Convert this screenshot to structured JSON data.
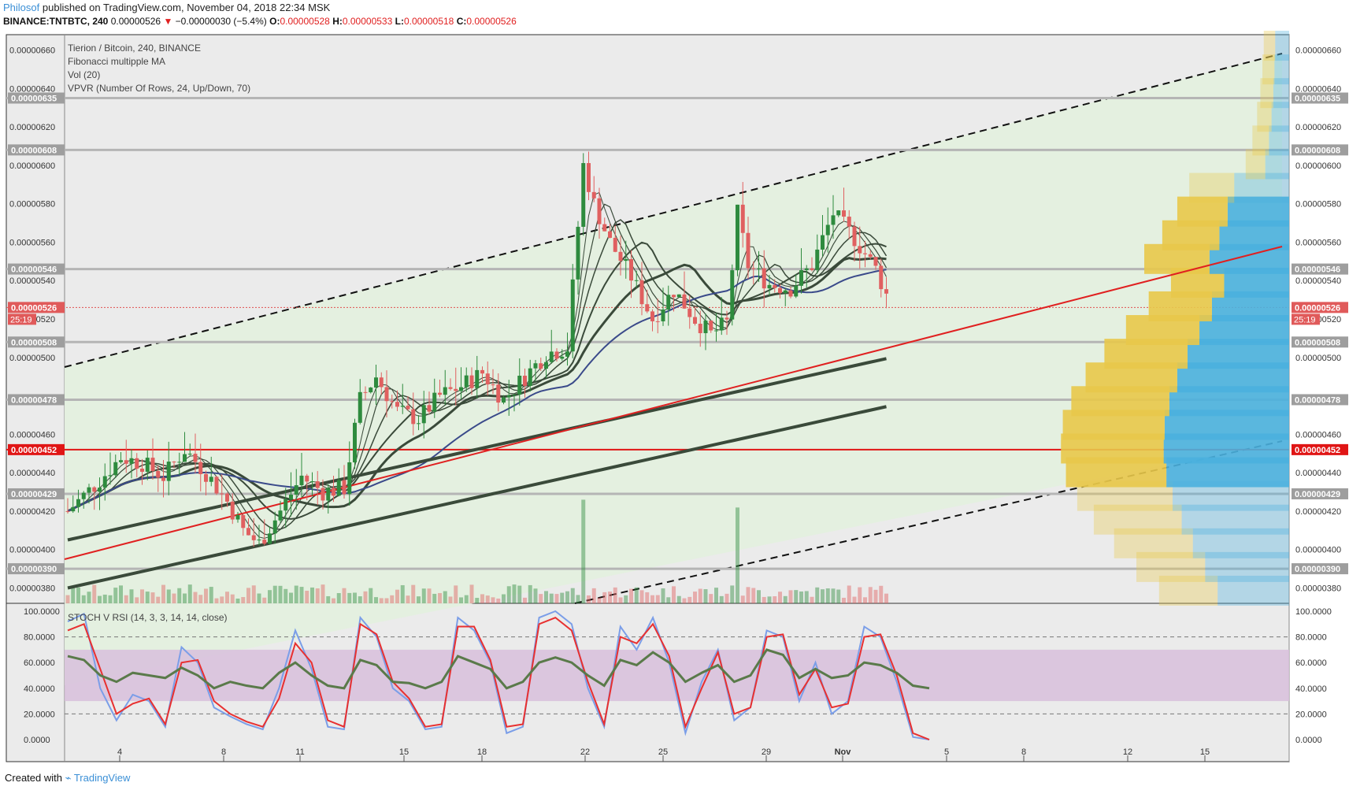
{
  "header": {
    "user": "Philosof",
    "published": "published on TradingView.com, November 04, 2018 22:34 MSK",
    "symbol": "BINANCE:TNTBTC, 240",
    "last": "0.00000526",
    "change_arrow": "▼",
    "change": "−0.00000030 (−5.4%)",
    "o_label": "O:",
    "o": "0.00000528",
    "h_label": "H:",
    "h": "0.00000533",
    "l_label": "L:",
    "l": "0.00000518",
    "c_label": "C:",
    "c": "0.00000526"
  },
  "legend": {
    "title": "Tierion / Bitcoin, 240, BINANCE",
    "ma": "Fibonacci multipple MA",
    "vol": "Vol (20)",
    "vpvr": "VPVR (Number Of Rows, 24, Up/Down, 70)",
    "osc": "STOCH V RSI (14, 3, 3, 14, 14, close)"
  },
  "countdown": "25:19",
  "footer": {
    "created": "Created with",
    "brand": "TradingView"
  },
  "colors": {
    "up": "#2e8b3e",
    "down": "#e06060",
    "channel_fill": "#e4f0df",
    "vp_up": "#4ab0de",
    "vp_down": "#e8c84a",
    "stoch_k": "#7b9ee8",
    "stoch_d": "#e83030",
    "rsi": "#5a7a4a",
    "rsi_band": "#d8bfdc"
  },
  "chart_data": [
    {
      "type": "candlestick",
      "ylim": [
        3.72e-06,
        6.68e-06
      ],
      "y_ticks": [
        "0.00000380",
        "0.00000400",
        "0.00000420",
        "0.00000440",
        "0.00000460",
        "0.00000500",
        "0.00000520",
        "0.00000540",
        "0.00000560",
        "0.00000580",
        "0.00000600",
        "0.00000620",
        "0.00000640",
        "0.00000660"
      ],
      "x_ticks": [
        "4",
        "8",
        "11",
        "15",
        "18",
        "22",
        "25",
        "29",
        "Nov",
        "5",
        "8",
        "12",
        "15"
      ],
      "horizontal_levels": [
        "0.00000635",
        "0.00000608",
        "0.00000546",
        "0.00000508",
        "0.00000478",
        "0.00000429",
        "0.00000390"
      ],
      "key_level": "0.00000452",
      "last_price_label": "0.00000526",
      "close_path": [
        [
          0,
          4.2e-06
        ],
        [
          6,
          4.36e-06
        ],
        [
          10,
          4.48e-06
        ],
        [
          14,
          4.45e-06
        ],
        [
          18,
          4.38e-06
        ],
        [
          22,
          4.52e-06
        ],
        [
          26,
          4.4e-06
        ],
        [
          30,
          4.25e-06
        ],
        [
          33,
          4.1e-06
        ],
        [
          36,
          4.03e-06
        ],
        [
          40,
          4.2e-06
        ],
        [
          44,
          4.38e-06
        ],
        [
          48,
          4.3e-06
        ],
        [
          52,
          4.32e-06
        ],
        [
          55,
          4.78e-06
        ],
        [
          58,
          4.9e-06
        ],
        [
          62,
          4.72e-06
        ],
        [
          66,
          4.68e-06
        ],
        [
          70,
          4.8e-06
        ],
        [
          74,
          4.85e-06
        ],
        [
          78,
          4.92e-06
        ],
        [
          82,
          4.78e-06
        ],
        [
          86,
          4.9e-06
        ],
        [
          90,
          5.02e-06
        ],
        [
          94,
          5.05e-06
        ],
        [
          97,
          6e-06
        ],
        [
          99,
          5.8e-06
        ],
        [
          102,
          5.6e-06
        ],
        [
          106,
          5.42e-06
        ],
        [
          110,
          5.2e-06
        ],
        [
          114,
          5.35e-06
        ],
        [
          118,
          5.2e-06
        ],
        [
          121,
          5.12e-06
        ],
        [
          124,
          5.18e-06
        ],
        [
          126,
          5.75e-06
        ],
        [
          128,
          5.48e-06
        ],
        [
          132,
          5.38e-06
        ],
        [
          136,
          5.36e-06
        ],
        [
          140,
          5.48e-06
        ],
        [
          144,
          5.75e-06
        ],
        [
          148,
          5.62e-06
        ],
        [
          152,
          5.46e-06
        ],
        [
          155,
          5.26e-06
        ]
      ],
      "bars_per_day": 6
    },
    {
      "type": "line",
      "name": "STOCH V RSI (14, 3, 3, 14, 14, close)",
      "ylim": [
        0,
        100
      ],
      "y_ticks": [
        "0.0000",
        "20.0000",
        "40.0000",
        "60.0000",
        "80.0000",
        "100.0000"
      ],
      "band": [
        30,
        70
      ],
      "k": [
        92,
        98,
        40,
        15,
        35,
        30,
        10,
        72,
        60,
        25,
        18,
        12,
        8,
        40,
        85,
        55,
        10,
        8,
        95,
        80,
        40,
        30,
        8,
        10,
        95,
        85,
        60,
        5,
        10,
        95,
        100,
        90,
        40,
        10,
        88,
        70,
        95,
        60,
        5,
        45,
        70,
        15,
        25,
        85,
        80,
        30,
        60,
        20,
        30,
        88,
        80,
        45,
        2,
        0
      ],
      "d": [
        85,
        90,
        55,
        20,
        28,
        32,
        12,
        60,
        62,
        30,
        20,
        14,
        10,
        32,
        75,
        60,
        15,
        10,
        90,
        82,
        45,
        32,
        10,
        12,
        88,
        88,
        62,
        10,
        12,
        90,
        95,
        85,
        45,
        12,
        80,
        75,
        90,
        65,
        10,
        40,
        68,
        20,
        25,
        80,
        82,
        35,
        55,
        25,
        28,
        80,
        82,
        50,
        5,
        0
      ],
      "rsi": [
        65,
        62,
        50,
        45,
        52,
        50,
        48,
        56,
        50,
        40,
        45,
        42,
        40,
        52,
        60,
        50,
        42,
        40,
        62,
        58,
        45,
        44,
        40,
        45,
        65,
        60,
        55,
        40,
        45,
        60,
        64,
        60,
        50,
        42,
        62,
        58,
        68,
        60,
        45,
        52,
        58,
        45,
        50,
        70,
        66,
        48,
        55,
        48,
        50,
        60,
        58,
        52,
        42,
        40
      ]
    }
  ]
}
